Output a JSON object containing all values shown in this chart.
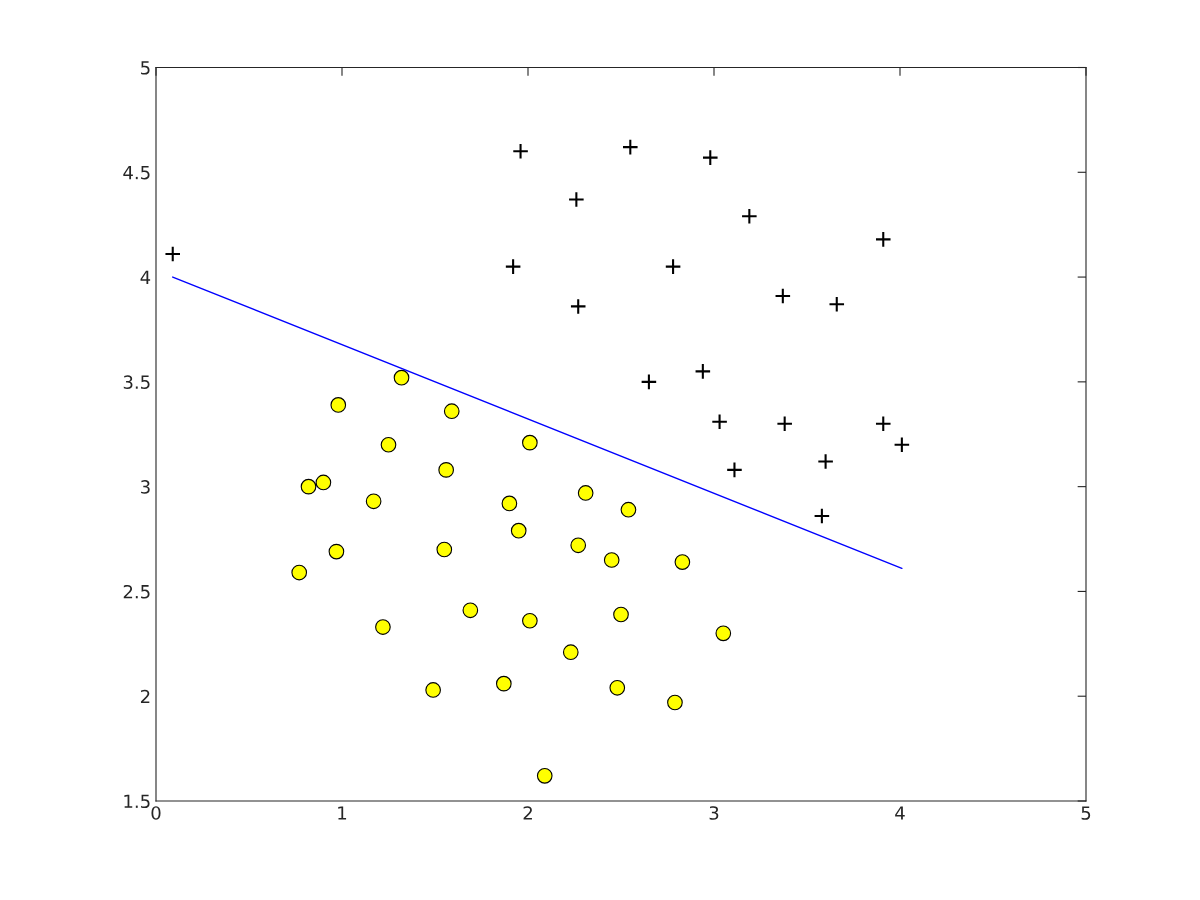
{
  "chart_data": {
    "type": "scatter",
    "xlim": [
      0,
      5
    ],
    "ylim": [
      1.5,
      5
    ],
    "xticks": [
      0,
      1,
      2,
      3,
      4,
      5
    ],
    "yticks": [
      1.5,
      2,
      2.5,
      3,
      3.5,
      4,
      4.5,
      5
    ],
    "grid": false,
    "legend": false,
    "series": [
      {
        "marker": "cross",
        "color": "#000000",
        "x": [
          0.09,
          1.96,
          2.55,
          2.98,
          2.26,
          3.19,
          3.91,
          1.92,
          2.78,
          2.27,
          3.37,
          3.66,
          2.65,
          2.94,
          3.38,
          3.91,
          3.03,
          4.01,
          3.6,
          3.11,
          3.58
        ],
        "values": [
          4.11,
          4.6,
          4.62,
          4.57,
          4.37,
          4.29,
          4.18,
          4.05,
          4.05,
          3.86,
          3.91,
          3.87,
          3.5,
          3.55,
          3.3,
          3.3,
          3.31,
          3.2,
          3.12,
          3.08,
          2.86
        ]
      },
      {
        "marker": "circle",
        "color": "#ffff00",
        "x": [
          1.32,
          0.98,
          1.59,
          1.25,
          2.01,
          0.82,
          0.9,
          1.17,
          1.56,
          2.31,
          1.9,
          2.54,
          1.95,
          0.97,
          1.55,
          2.27,
          2.45,
          2.83,
          0.77,
          1.69,
          2.01,
          2.5,
          1.22,
          3.05,
          2.23,
          1.49,
          1.87,
          2.48,
          2.79,
          2.09
        ],
        "values": [
          3.52,
          3.39,
          3.36,
          3.2,
          3.21,
          3.0,
          3.02,
          2.93,
          3.08,
          2.97,
          2.92,
          2.89,
          2.79,
          2.69,
          2.7,
          2.72,
          2.65,
          2.64,
          2.59,
          2.41,
          2.36,
          2.39,
          2.33,
          2.3,
          2.21,
          2.03,
          2.06,
          2.04,
          1.97,
          1.62
        ]
      },
      {
        "type": "line",
        "marker": "none",
        "color": "#0000ff",
        "x": [
          0.09,
          4.01
        ],
        "values": [
          4.0,
          2.61
        ]
      }
    ]
  }
}
